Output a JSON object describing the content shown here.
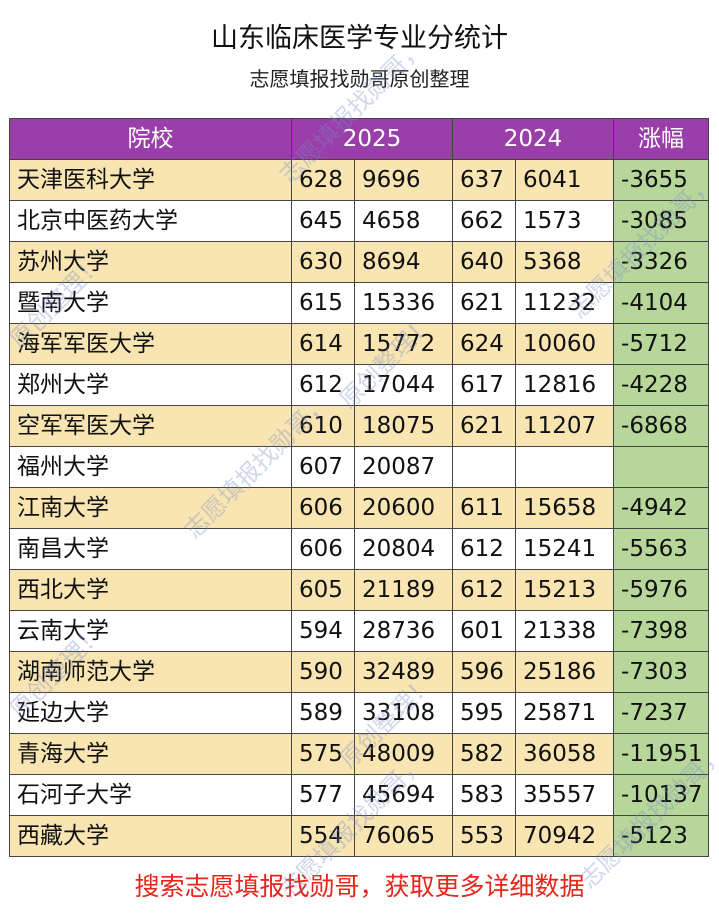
{
  "title": "山东临床医学专业分统计",
  "subtitle": "志愿填报找勋哥原创整理",
  "header": {
    "school": "院校",
    "year_a": "2025",
    "year_b": "2024",
    "change": "涨幅"
  },
  "rows": [
    {
      "school": "天津医科大学",
      "a_score": "628",
      "a_rank": "9696",
      "b_score": "637",
      "b_rank": "6041",
      "change": "-3655"
    },
    {
      "school": "北京中医药大学",
      "a_score": "645",
      "a_rank": "4658",
      "b_score": "662",
      "b_rank": "1573",
      "change": "-3085"
    },
    {
      "school": "苏州大学",
      "a_score": "630",
      "a_rank": "8694",
      "b_score": "640",
      "b_rank": "5368",
      "change": "-3326"
    },
    {
      "school": "暨南大学",
      "a_score": "615",
      "a_rank": "15336",
      "b_score": "621",
      "b_rank": "11232",
      "change": "-4104"
    },
    {
      "school": "海军军医大学",
      "a_score": "614",
      "a_rank": "15772",
      "b_score": "624",
      "b_rank": "10060",
      "change": "-5712"
    },
    {
      "school": "郑州大学",
      "a_score": "612",
      "a_rank": "17044",
      "b_score": "617",
      "b_rank": "12816",
      "change": "-4228"
    },
    {
      "school": "空军军医大学",
      "a_score": "610",
      "a_rank": "18075",
      "b_score": "621",
      "b_rank": "11207",
      "change": "-6868"
    },
    {
      "school": "福州大学",
      "a_score": "607",
      "a_rank": "20087",
      "b_score": "",
      "b_rank": "",
      "change": ""
    },
    {
      "school": "江南大学",
      "a_score": "606",
      "a_rank": "20600",
      "b_score": "611",
      "b_rank": "15658",
      "change": "-4942"
    },
    {
      "school": "南昌大学",
      "a_score": "606",
      "a_rank": "20804",
      "b_score": "612",
      "b_rank": "15241",
      "change": "-5563"
    },
    {
      "school": "西北大学",
      "a_score": "605",
      "a_rank": "21189",
      "b_score": "612",
      "b_rank": "15213",
      "change": "-5976"
    },
    {
      "school": "云南大学",
      "a_score": "594",
      "a_rank": "28736",
      "b_score": "601",
      "b_rank": "21338",
      "change": "-7398"
    },
    {
      "school": "湖南师范大学",
      "a_score": "590",
      "a_rank": "32489",
      "b_score": "596",
      "b_rank": "25186",
      "change": "-7303"
    },
    {
      "school": "延边大学",
      "a_score": "589",
      "a_rank": "33108",
      "b_score": "595",
      "b_rank": "25871",
      "change": "-7237"
    },
    {
      "school": "青海大学",
      "a_score": "575",
      "a_rank": "48009",
      "b_score": "582",
      "b_rank": "36058",
      "change": "-11951"
    },
    {
      "school": "石河子大学",
      "a_score": "577",
      "a_rank": "45694",
      "b_score": "583",
      "b_rank": "35557",
      "change": "-10137"
    },
    {
      "school": "西藏大学",
      "a_score": "554",
      "a_rank": "76065",
      "b_score": "553",
      "b_rank": "70942",
      "change": "-5123"
    }
  ],
  "footer": "搜索志愿填报找勋哥，获取更多详细数据",
  "watermark": {
    "text_a": "志愿填报找勋哥，",
    "text_b": "原创整理！"
  },
  "colors": {
    "header_bg": "#9a3fa9",
    "odd_row_bg": "#f8e5b2",
    "change_bg": "#b7d69a",
    "footer_text": "#e8251b"
  }
}
